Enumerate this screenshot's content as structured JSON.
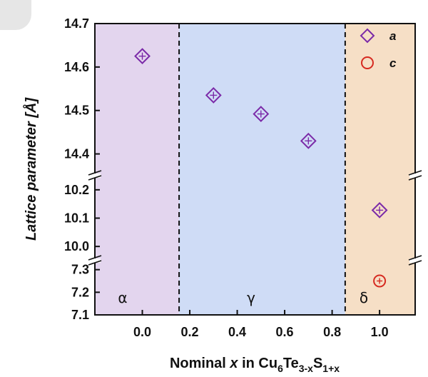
{
  "chart_data": {
    "type": "scatter",
    "title": "",
    "xlabel_parts": [
      {
        "text": "Nominal ",
        "style": "normal",
        "shift": ""
      },
      {
        "text": "x",
        "style": "italic",
        "shift": ""
      },
      {
        "text": " in Cu",
        "style": "normal",
        "shift": ""
      },
      {
        "text": "6",
        "style": "normal",
        "shift": "sub"
      },
      {
        "text": "Te",
        "style": "normal",
        "shift": ""
      },
      {
        "text": "3-x",
        "style": "normal",
        "shift": "sub"
      },
      {
        "text": "S",
        "style": "normal",
        "shift": ""
      },
      {
        "text": "1+x",
        "style": "normal",
        "shift": "sub"
      }
    ],
    "ylabel": "Lattice parameter [Å]",
    "xlim": [
      -0.2,
      1.15
    ],
    "x_ticks": [
      "0.0",
      "0.2",
      "0.4",
      "0.6",
      "0.8",
      "1.0"
    ],
    "x_tick_values": [
      0.0,
      0.2,
      0.4,
      0.6,
      0.8,
      1.0
    ],
    "y_segments": [
      {
        "range": [
          7.1,
          7.34
        ],
        "ticks": [
          "7.1",
          "7.2",
          "7.3"
        ],
        "tick_values": [
          7.1,
          7.2,
          7.3
        ]
      },
      {
        "range": [
          9.95,
          10.25
        ],
        "ticks": [
          "10.0",
          "10.1",
          "10.2"
        ],
        "tick_values": [
          10.0,
          10.1,
          10.2
        ]
      },
      {
        "range": [
          14.35,
          14.7
        ],
        "ticks": [
          "14.4",
          "14.5",
          "14.6",
          "14.7"
        ],
        "tick_values": [
          14.4,
          14.5,
          14.6,
          14.7
        ]
      }
    ],
    "regions": [
      {
        "label": "α",
        "x_range": [
          -0.2,
          0.155
        ],
        "color": "#e3d5ee"
      },
      {
        "label": "γ",
        "x_range": [
          0.155,
          0.855
        ],
        "color": "#cfdcf6"
      },
      {
        "label": "δ",
        "x_range": [
          0.855,
          1.15
        ],
        "color": "#f6dfc6"
      }
    ],
    "boundaries": [
      0.155,
      0.855
    ],
    "series": [
      {
        "name": "a",
        "marker": "diamond",
        "color": "#7b2aa8",
        "points": [
          {
            "x": 0.0,
            "y": 14.625
          },
          {
            "x": 0.3,
            "y": 14.535
          },
          {
            "x": 0.5,
            "y": 14.492
          },
          {
            "x": 0.7,
            "y": 14.43
          },
          {
            "x": 1.0,
            "y": 10.128
          }
        ]
      },
      {
        "name": "c",
        "marker": "circle",
        "color": "#d62a20",
        "points": [
          {
            "x": 1.0,
            "y": 7.25
          }
        ]
      }
    ],
    "legend_position": "top-right",
    "grid": false
  }
}
